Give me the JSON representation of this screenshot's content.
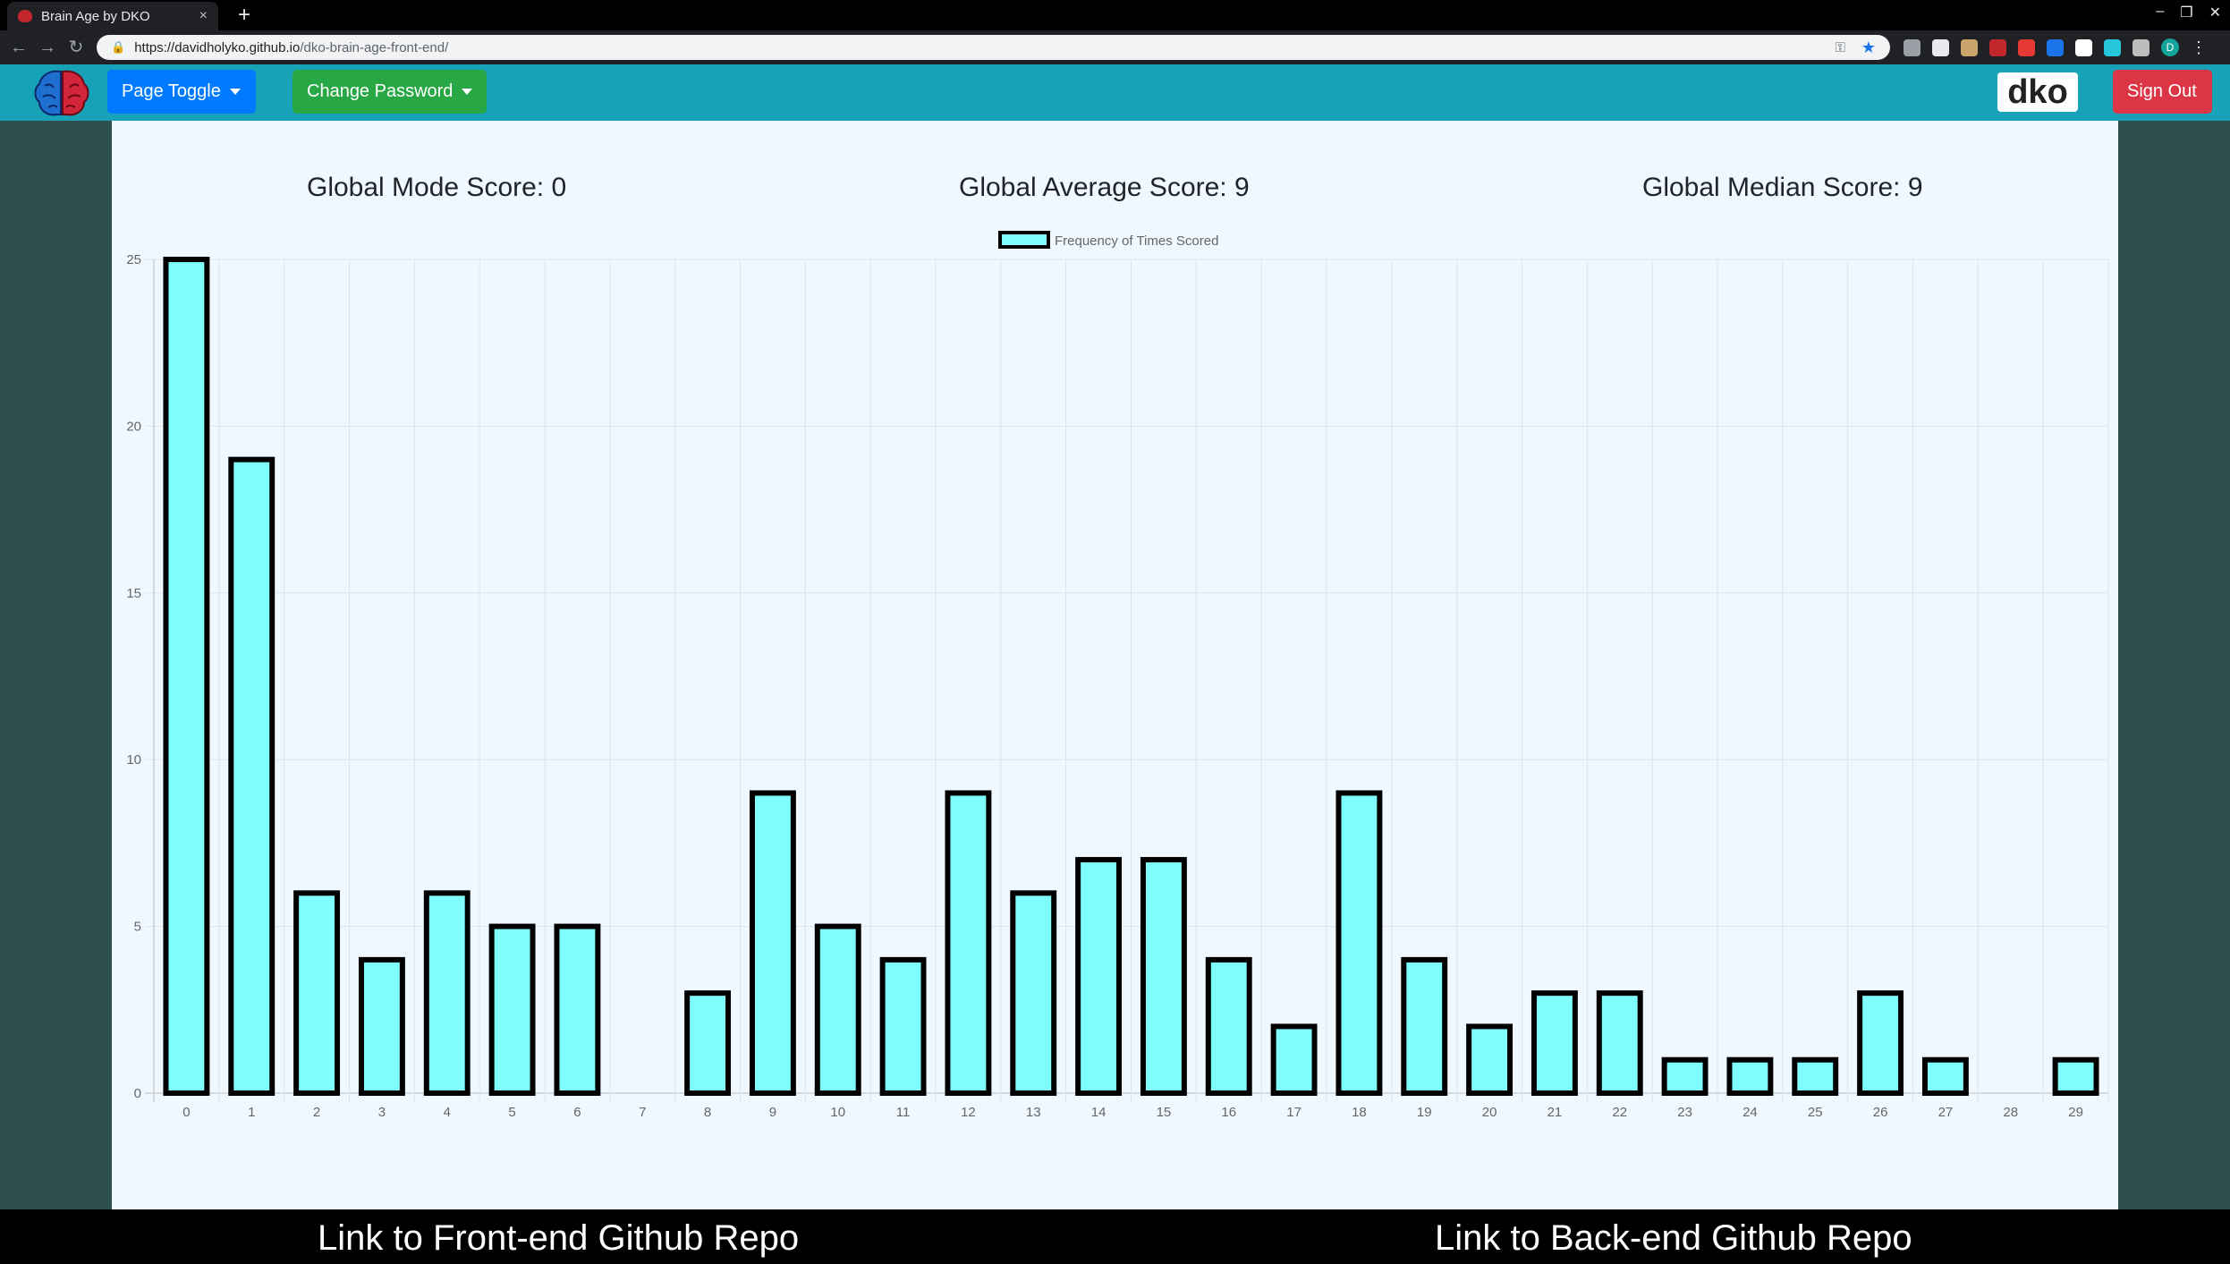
{
  "browser": {
    "tab_title": "Brain Age by DKO",
    "tab_close": "×",
    "new_tab": "+",
    "url_host": "https://davidholyko.github.io",
    "url_path": "/dko-brain-age-front-end/",
    "extension_colors": [
      "#9aa0a6",
      "#e8eaed",
      "#c9a46b",
      "#c2272d",
      "#e53935",
      "#1a73e8",
      "#ffffff",
      "#26c6da",
      "#bdbdbd"
    ],
    "profile_initial": "D"
  },
  "nav": {
    "page_toggle_label": "Page Toggle",
    "change_password_label": "Change Password",
    "username": "dko",
    "sign_out_label": "Sign Out",
    "colors": {
      "navbar": "#17a2b8",
      "page_toggle": "#007bff",
      "change_password": "#28a745",
      "sign_out": "#dc3545"
    }
  },
  "scores": {
    "mode": "Global Mode Score: 0",
    "average": "Global Average Score: 9",
    "median": "Global Median Score: 9"
  },
  "chart_data": {
    "type": "bar",
    "legend": "Frequency of Times Scored",
    "legend_position": "top-center",
    "categories": [
      "0",
      "1",
      "2",
      "3",
      "4",
      "5",
      "6",
      "7",
      "8",
      "9",
      "10",
      "11",
      "12",
      "13",
      "14",
      "15",
      "16",
      "17",
      "18",
      "19",
      "20",
      "21",
      "22",
      "23",
      "24",
      "25",
      "26",
      "27",
      "28",
      "29"
    ],
    "values": [
      25,
      19,
      6,
      4,
      6,
      5,
      5,
      0,
      3,
      9,
      5,
      4,
      9,
      6,
      7,
      7,
      4,
      2,
      9,
      4,
      2,
      3,
      3,
      1,
      1,
      1,
      3,
      1,
      0,
      1
    ],
    "y_ticks": [
      "0",
      "5",
      "10",
      "15",
      "20",
      "25"
    ],
    "ylim": [
      0,
      25
    ],
    "grid": true,
    "bar_color": "#7ffdfc",
    "border_color": "#000000"
  },
  "footer": {
    "front_link": "Link to Front-end Github Repo",
    "back_link": "Link to Back-end Github Repo"
  }
}
